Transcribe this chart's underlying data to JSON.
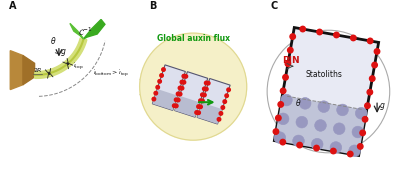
{
  "bg_color": "#ffffff",
  "panel_A_label": "A",
  "panel_B_label": "B",
  "panel_C_label": "C",
  "stem_color_light": "#d4e07a",
  "stem_color_dark": "#b8c840",
  "leaf_color": "#3aaa20",
  "leaf_color2": "#5ac035",
  "pot_color": "#b8883a",
  "pot_color_dark": "#a07028",
  "circle_B_color": "#f5f0c8",
  "circle_B_edge": "#e0d890",
  "cell_top_color": "#dde0ee",
  "cell_bot_color": "#b8bcd0",
  "cell_edge_color": "#555570",
  "statolith_fill": "#9898c0",
  "statolith_edge": "#6868a0",
  "red_dot": "#dd1111",
  "arrow_dark": "#222222",
  "green_text": "#119911",
  "green_arrow": "#119911",
  "pin_label_color": "#cc1111",
  "text_dark": "#111111",
  "gray_line": "#888888",
  "circ_C_edge": "#aaaaaa",
  "cell_C_face": "#e8eaf4",
  "cell_C_edge": "#111111",
  "cell_C_bot": "#c0c4d8"
}
